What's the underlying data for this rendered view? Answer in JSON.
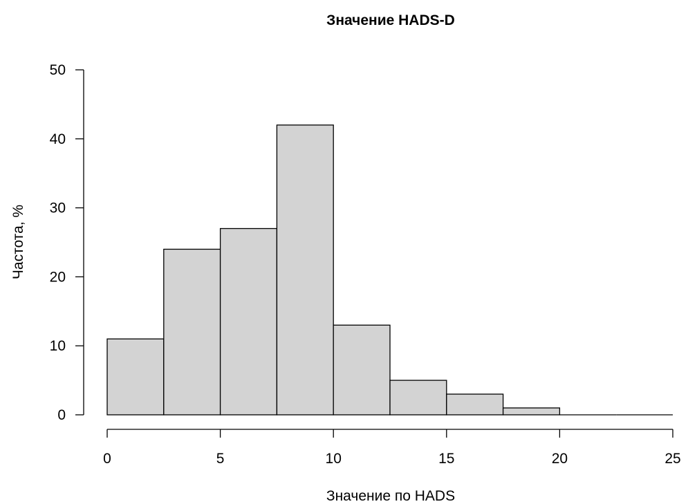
{
  "chart_data": {
    "type": "bar",
    "title": "Значение HADS-D",
    "xlabel": "Значение по HADS",
    "ylabel": "Частота, %",
    "bins": [
      {
        "from": 0,
        "to": 2.5,
        "value": 11
      },
      {
        "from": 2.5,
        "to": 5,
        "value": 24
      },
      {
        "from": 5,
        "to": 7.5,
        "value": 27
      },
      {
        "from": 7.5,
        "to": 10,
        "value": 42
      },
      {
        "from": 10,
        "to": 12.5,
        "value": 13
      },
      {
        "from": 12.5,
        "to": 15,
        "value": 5
      },
      {
        "from": 15,
        "to": 17.5,
        "value": 3
      },
      {
        "from": 17.5,
        "to": 20,
        "value": 1
      },
      {
        "from": 20,
        "to": 22.5,
        "value": 0
      },
      {
        "from": 22.5,
        "to": 25,
        "value": 0
      }
    ],
    "xlim": [
      0,
      25
    ],
    "ylim": [
      0,
      50
    ],
    "xticks": [
      "0",
      "5",
      "10",
      "15",
      "20",
      "25"
    ],
    "yticks": [
      "0",
      "10",
      "20",
      "30",
      "40",
      "50"
    ],
    "bar_color": "#d3d3d3",
    "edge_color": "#000000",
    "grid": false
  }
}
